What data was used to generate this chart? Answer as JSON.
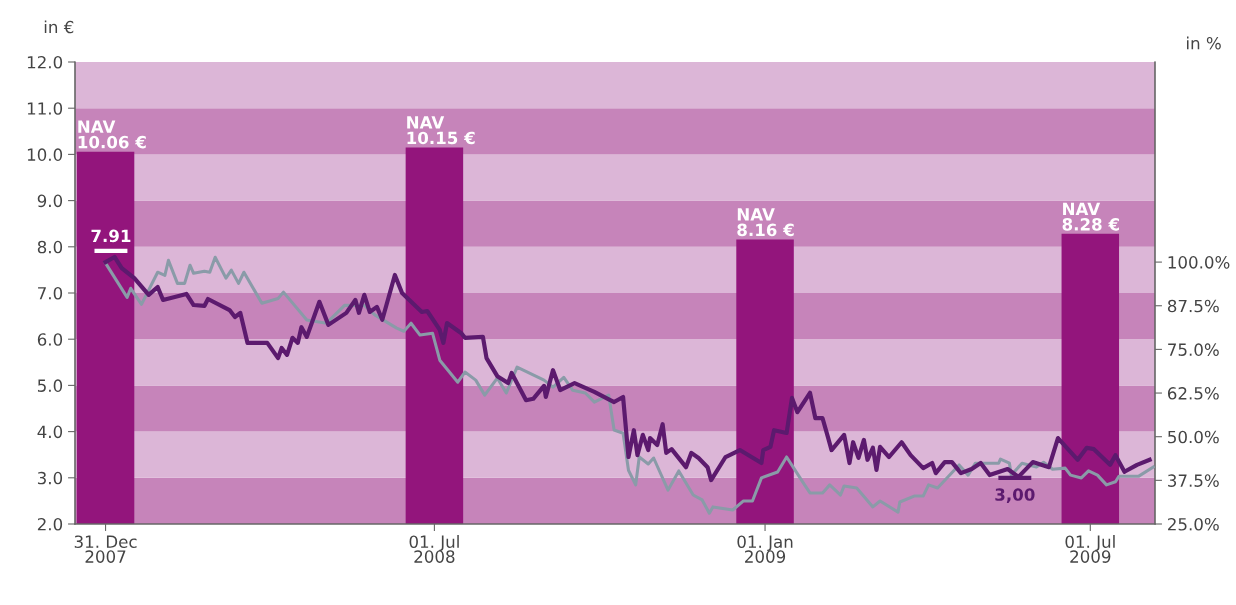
{
  "chart_data": {
    "type": "line",
    "ylabel": "in €",
    "y2label": "in %",
    "xlim": [
      "2007-12-14",
      "2009-08-06"
    ],
    "xticks": [
      {
        "value": "2007-12-31",
        "label": "31. Dec\n2007"
      },
      {
        "value": "2008-07-01",
        "label": "01. Jul\n2008"
      },
      {
        "value": "2009-01-01",
        "label": "01. Jan\n2009"
      },
      {
        "value": "2009-07-01",
        "label": "01. Jul\n2009"
      }
    ],
    "ylim": [
      2,
      12
    ],
    "yticks": [
      {
        "value": 2,
        "label": "2.0"
      },
      {
        "value": 3,
        "label": "3.0"
      },
      {
        "value": 4,
        "label": "4.0"
      },
      {
        "value": 5,
        "label": "5.0"
      },
      {
        "value": 6,
        "label": "6.0"
      },
      {
        "value": 7,
        "label": "7.0"
      },
      {
        "value": 8,
        "label": "8.0"
      },
      {
        "value": 9,
        "label": "9.0"
      },
      {
        "value": 10,
        "label": "10.0"
      },
      {
        "value": 11,
        "label": "11.0"
      },
      {
        "value": 12,
        "label": "12.0"
      }
    ],
    "y2lim": [
      25,
      157.3
    ],
    "y2ticks": [
      {
        "value": 25,
        "label": "25.0%"
      },
      {
        "value": 37.5,
        "label": "37.5%"
      },
      {
        "value": 50,
        "label": "50.0%"
      },
      {
        "value": 62.5,
        "label": "62.5%"
      },
      {
        "value": 75,
        "label": "75.0%"
      },
      {
        "value": 87.5,
        "label": "87.5%"
      },
      {
        "value": 100,
        "label": "100.0%"
      }
    ],
    "grid": false,
    "bands": [
      {
        "axis": "y",
        "from": 2,
        "to": 3,
        "color": "#c684ba"
      },
      {
        "axis": "y",
        "from": 3,
        "to": 4,
        "color": "#dcb6d7"
      },
      {
        "axis": "y",
        "from": 4,
        "to": 5,
        "color": "#c684ba"
      },
      {
        "axis": "y",
        "from": 5,
        "to": 6,
        "color": "#dcb6d7"
      },
      {
        "axis": "y",
        "from": 6,
        "to": 7,
        "color": "#c684ba"
      },
      {
        "axis": "y",
        "from": 7,
        "to": 8,
        "color": "#dcb6d7"
      },
      {
        "axis": "y",
        "from": 8,
        "to": 9,
        "color": "#c684ba"
      },
      {
        "axis": "y",
        "from": 9,
        "to": 10,
        "color": "#dcb6d7"
      },
      {
        "axis": "y",
        "from": 10,
        "to": 11,
        "color": "#c684ba"
      },
      {
        "axis": "y",
        "from": 11,
        "to": 12,
        "color": "#dcb6d7"
      }
    ],
    "annotations": [
      {
        "text": "7.91",
        "x": "2008-01-03",
        "y": 7.91
      },
      {
        "text": "3,00",
        "x": "2009-05-20",
        "y": 3.0
      }
    ],
    "series": [
      {
        "type": "bar",
        "color": "#93157c",
        "x": [
          "2007-12-31",
          "2008-07-01",
          "2009-01-01",
          "2009-07-01"
        ],
        "values": [
          10.06,
          10.15,
          8.16,
          8.28
        ],
        "value_labels": [
          "NAV\n10.06 €",
          "NAV\n10.15 €",
          "NAV\n8.16 €",
          "NAV\n8.28 €"
        ]
      },
      {
        "axis": "y2",
        "color": "#8a9ba8",
        "x": [
          "2007-12-31",
          "2008-01-12",
          "2008-01-14",
          "2008-01-20",
          "2008-01-29",
          "2008-02-02",
          "2008-02-04",
          "2008-02-09",
          "2008-02-13",
          "2008-02-16",
          "2008-02-18",
          "2008-02-24",
          "2008-02-27",
          "2008-03-01",
          "2008-03-07",
          "2008-03-10",
          "2008-03-14",
          "2008-03-17",
          "2008-03-27",
          "2008-04-05",
          "2008-04-08",
          "2008-04-21",
          "2008-05-02",
          "2008-05-12",
          "2008-05-23",
          "2008-05-29",
          "2008-06-10",
          "2008-06-14",
          "2008-06-18",
          "2008-06-23",
          "2008-06-30",
          "2008-07-04",
          "2008-07-14",
          "2008-07-18",
          "2008-07-24",
          "2008-07-29",
          "2008-08-05",
          "2008-08-10",
          "2008-08-16",
          "2008-08-31",
          "2008-09-05",
          "2008-09-11",
          "2008-09-16",
          "2008-09-23",
          "2008-09-28",
          "2008-10-06",
          "2008-10-09",
          "2008-10-14",
          "2008-10-17",
          "2008-10-21",
          "2008-10-23",
          "2008-10-28",
          "2008-10-31",
          "2008-11-08",
          "2008-11-14",
          "2008-11-22",
          "2008-11-27",
          "2008-12-01",
          "2008-12-03",
          "2008-12-14",
          "2008-12-20",
          "2008-12-25",
          "2008-12-30",
          "2009-01-08",
          "2009-01-13",
          "2009-01-23",
          "2009-01-26",
          "2009-02-02",
          "2009-02-06",
          "2009-02-12",
          "2009-02-14",
          "2009-02-21",
          "2009-03-02",
          "2009-03-06",
          "2009-03-16",
          "2009-03-17",
          "2009-03-25",
          "2009-03-30",
          "2009-04-02",
          "2009-04-07",
          "2009-04-19",
          "2009-04-24",
          "2009-04-28",
          "2009-05-11",
          "2009-05-12",
          "2009-05-17",
          "2009-05-18",
          "2009-05-24",
          "2009-06-01",
          "2009-06-05",
          "2009-06-10",
          "2009-06-17",
          "2009-06-20",
          "2009-06-26",
          "2009-06-30",
          "2009-07-05",
          "2009-07-10",
          "2009-07-15",
          "2009-07-17",
          "2009-07-28",
          "2009-08-05"
        ],
        "values": [
          99.7,
          89.9,
          92.5,
          87.9,
          97.1,
          96.2,
          100.5,
          93.9,
          93.9,
          99.1,
          96.8,
          97.4,
          97.1,
          101.4,
          95.4,
          97.7,
          93.9,
          97.1,
          88.2,
          89.6,
          91.4,
          83.4,
          82.5,
          87.6,
          87.6,
          84.8,
          81.1,
          80.2,
          82.5,
          79.1,
          79.6,
          71.9,
          65.6,
          68.5,
          66.2,
          61.9,
          66.8,
          62.5,
          69.9,
          66.2,
          64.2,
          67.0,
          63.3,
          62.5,
          59.9,
          61.9,
          51.9,
          51.0,
          40.4,
          36.2,
          44.2,
          42.2,
          43.9,
          34.7,
          40.2,
          33.3,
          31.9,
          28.1,
          29.9,
          29.0,
          31.6,
          31.6,
          38.2,
          39.9,
          44.2,
          36.2,
          33.9,
          33.9,
          36.2,
          33.3,
          35.9,
          35.3,
          29.9,
          31.6,
          28.4,
          31.3,
          33.0,
          33.0,
          36.2,
          35.3,
          41.9,
          39.0,
          42.4,
          42.4,
          43.6,
          42.4,
          39.0,
          42.4,
          41.3,
          42.7,
          40.7,
          41.0,
          39.0,
          38.2,
          40.2,
          39.0,
          36.2,
          37.1,
          38.7,
          38.7,
          41.3
        ]
      },
      {
        "axis": "y",
        "color": "#5c1a6e",
        "x": [
          "2007-12-31",
          "2008-01-05",
          "2008-01-09",
          "2008-01-16",
          "2008-01-24",
          "2008-01-29",
          "2008-02-01",
          "2008-02-14",
          "2008-02-18",
          "2008-02-24",
          "2008-02-26",
          "2008-03-09",
          "2008-03-12",
          "2008-03-15",
          "2008-03-19",
          "2008-03-30",
          "2008-04-05",
          "2008-04-07",
          "2008-04-10",
          "2008-04-13",
          "2008-04-16",
          "2008-04-18",
          "2008-04-21",
          "2008-04-28",
          "2008-05-03",
          "2008-05-13",
          "2008-05-18",
          "2008-05-20",
          "2008-05-23",
          "2008-05-26",
          "2008-05-30",
          "2008-06-02",
          "2008-06-09",
          "2008-06-13",
          "2008-06-24",
          "2008-06-27",
          "2008-07-04",
          "2008-07-06",
          "2008-07-08",
          "2008-07-16",
          "2008-07-18",
          "2008-07-28",
          "2008-07-30",
          "2008-08-05",
          "2008-08-11",
          "2008-08-13",
          "2008-08-21",
          "2008-08-25",
          "2008-08-31",
          "2008-09-01",
          "2008-09-05",
          "2008-09-09",
          "2008-09-17",
          "2008-09-28",
          "2008-10-09",
          "2008-10-14",
          "2008-10-17",
          "2008-10-20",
          "2008-10-22",
          "2008-10-25",
          "2008-10-28",
          "2008-10-29",
          "2008-11-02",
          "2008-11-05",
          "2008-11-07",
          "2008-11-10",
          "2008-11-18",
          "2008-11-21",
          "2008-11-25",
          "2008-11-30",
          "2008-12-02",
          "2008-12-10",
          "2008-12-18",
          "2008-12-30",
          "2008-12-31",
          "2009-01-04",
          "2009-01-06",
          "2009-01-13",
          "2009-01-16",
          "2009-01-19",
          "2009-01-26",
          "2009-01-29",
          "2009-02-02",
          "2009-02-05",
          "2009-02-07",
          "2009-02-14",
          "2009-02-17",
          "2009-02-19",
          "2009-02-22",
          "2009-02-25",
          "2009-02-27",
          "2009-03-02",
          "2009-03-04",
          "2009-03-06",
          "2009-03-11",
          "2009-03-18",
          "2009-03-23",
          "2009-03-30",
          "2009-04-04",
          "2009-04-06",
          "2009-04-11",
          "2009-04-15",
          "2009-04-20",
          "2009-04-26",
          "2009-05-01",
          "2009-05-06",
          "2009-05-16",
          "2009-05-22",
          "2009-05-30",
          "2009-06-08",
          "2009-06-13",
          "2009-06-24",
          "2009-06-29",
          "2009-07-03",
          "2009-07-12",
          "2009-07-15",
          "2009-07-20",
          "2009-07-27",
          "2009-08-03"
        ],
        "values": [
          7.67,
          7.78,
          7.54,
          7.32,
          6.96,
          7.13,
          6.85,
          6.98,
          6.74,
          6.72,
          6.87,
          6.63,
          6.48,
          6.57,
          5.92,
          5.92,
          5.59,
          5.81,
          5.66,
          6.03,
          5.92,
          6.26,
          6.05,
          6.81,
          6.31,
          6.57,
          6.85,
          6.57,
          6.96,
          6.59,
          6.7,
          6.42,
          7.39,
          7.0,
          6.59,
          6.61,
          6.2,
          5.92,
          6.35,
          6.13,
          6.03,
          6.05,
          5.59,
          5.2,
          5.05,
          5.27,
          4.68,
          4.71,
          4.99,
          4.75,
          5.33,
          4.9,
          5.05,
          4.86,
          4.64,
          4.75,
          3.45,
          4.03,
          3.49,
          3.93,
          3.6,
          3.86,
          3.71,
          4.16,
          3.54,
          3.62,
          3.23,
          3.54,
          3.43,
          3.23,
          2.95,
          3.45,
          3.6,
          3.32,
          3.6,
          3.67,
          4.03,
          3.97,
          4.73,
          4.42,
          4.84,
          4.29,
          4.29,
          3.88,
          3.6,
          3.93,
          3.32,
          3.77,
          3.43,
          3.82,
          3.39,
          3.65,
          3.17,
          3.67,
          3.45,
          3.77,
          3.49,
          3.21,
          3.32,
          3.1,
          3.34,
          3.34,
          3.1,
          3.19,
          3.32,
          3.06,
          3.19,
          3.02,
          3.34,
          3.23,
          3.86,
          3.39,
          3.65,
          3.62,
          3.28,
          3.49,
          3.13,
          3.28,
          3.39
        ]
      }
    ]
  }
}
